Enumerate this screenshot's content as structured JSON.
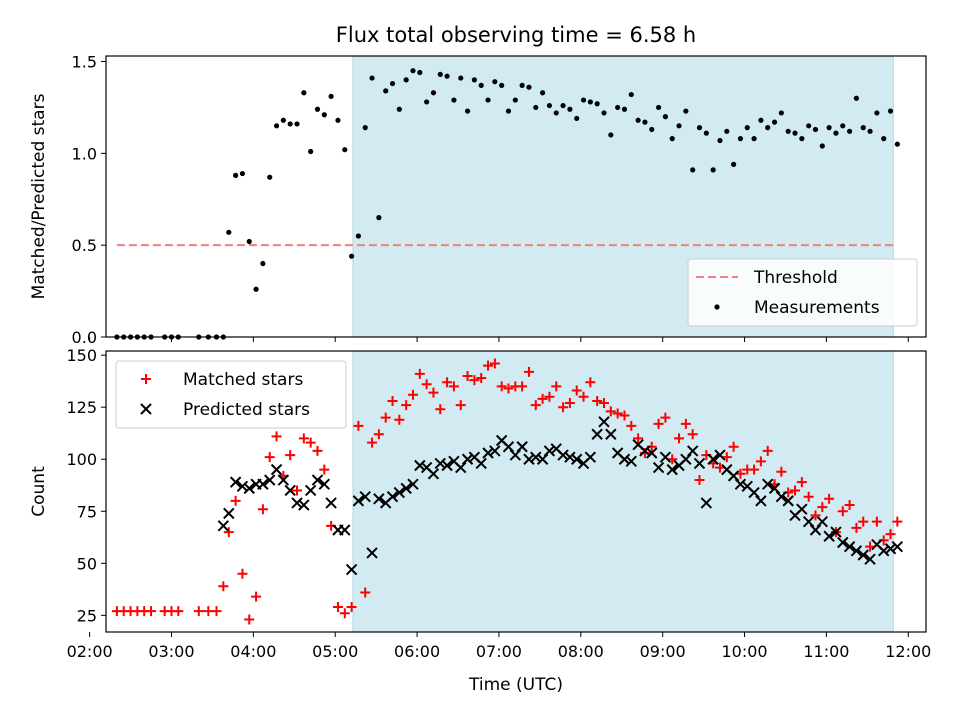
{
  "figure": {
    "title": "Flux total observing time = 6.58 h"
  },
  "colors": {
    "shade": "#add8e6",
    "threshold": "#f08080",
    "measurements": "#000000",
    "matched": "#ff0000",
    "predicted": "#000000"
  },
  "chart_data": [
    {
      "type": "scatter",
      "xlabel": "",
      "ylabel": "Matched/Predicted stars",
      "xlim": [
        "02:12",
        "12:13"
      ],
      "ylim": [
        0,
        1.53
      ],
      "yticks": [
        0.0,
        0.5,
        1.0,
        1.5
      ],
      "ytick_labels": [
        "0.0",
        "0.5",
        "1.0",
        "1.5"
      ],
      "shaded_span": [
        "05:13",
        "11:49"
      ],
      "threshold": {
        "label": "Threshold",
        "value": 0.5,
        "x": [
          "02:20",
          "11:50"
        ],
        "style": "dashed"
      },
      "legend_position": "lower right",
      "series": [
        {
          "name": "Measurements",
          "x": [
            "02:20",
            "02:25",
            "02:30",
            "02:35",
            "02:40",
            "02:45",
            "02:55",
            "03:00",
            "03:05",
            "03:20",
            "03:27",
            "03:33",
            "03:38",
            "03:42",
            "03:47",
            "03:52",
            "03:57",
            "04:02",
            "04:07",
            "04:12",
            "04:17",
            "04:22",
            "04:27",
            "04:32",
            "04:37",
            "04:42",
            "04:47",
            "04:52",
            "04:57",
            "05:02",
            "05:07",
            "05:12",
            "05:17",
            "05:22",
            "05:27",
            "05:32",
            "05:37",
            "05:42",
            "05:47",
            "05:52",
            "05:57",
            "06:02",
            "06:07",
            "06:12",
            "06:17",
            "06:22",
            "06:27",
            "06:32",
            "06:37",
            "06:42",
            "06:47",
            "06:52",
            "06:57",
            "07:02",
            "07:07",
            "07:12",
            "07:17",
            "07:22",
            "07:27",
            "07:32",
            "07:37",
            "07:42",
            "07:47",
            "07:52",
            "07:57",
            "08:02",
            "08:07",
            "08:12",
            "08:17",
            "08:22",
            "08:27",
            "08:32",
            "08:37",
            "08:42",
            "08:47",
            "08:52",
            "08:57",
            "09:02",
            "09:07",
            "09:12",
            "09:17",
            "09:22",
            "09:27",
            "09:32",
            "09:37",
            "09:42",
            "09:47",
            "09:52",
            "09:57",
            "10:02",
            "10:07",
            "10:12",
            "10:17",
            "10:22",
            "10:27",
            "10:32",
            "10:37",
            "10:42",
            "10:47",
            "10:52",
            "10:57",
            "11:02",
            "11:07",
            "11:12",
            "11:17",
            "11:22",
            "11:27",
            "11:32",
            "11:37",
            "11:42",
            "11:47",
            "11:52"
          ],
          "y": [
            0.0,
            0.0,
            0.0,
            0.0,
            0.0,
            0.0,
            0.0,
            0.0,
            0.0,
            0.0,
            0.0,
            0.0,
            0.0,
            0.57,
            0.88,
            0.89,
            0.52,
            0.26,
            0.4,
            0.87,
            1.15,
            1.18,
            1.16,
            1.16,
            1.33,
            1.01,
            1.24,
            1.21,
            1.31,
            1.18,
            1.02,
            0.44,
            0.55,
            1.14,
            1.41,
            0.65,
            1.34,
            1.38,
            1.24,
            1.4,
            1.45,
            1.44,
            1.28,
            1.33,
            1.43,
            1.42,
            1.29,
            1.41,
            1.23,
            1.4,
            1.37,
            1.29,
            1.39,
            1.37,
            1.23,
            1.29,
            1.37,
            1.36,
            1.25,
            1.33,
            1.26,
            1.22,
            1.26,
            1.24,
            1.19,
            1.29,
            1.28,
            1.27,
            1.22,
            1.1,
            1.25,
            1.24,
            1.32,
            1.18,
            1.17,
            1.13,
            1.25,
            1.2,
            1.08,
            1.15,
            1.23,
            0.91,
            1.14,
            1.11,
            0.91,
            1.07,
            1.12,
            0.94,
            1.08,
            1.14,
            1.08,
            1.18,
            1.14,
            1.17,
            1.22,
            1.12,
            1.11,
            1.08,
            1.15,
            1.13,
            1.04,
            1.14,
            1.11,
            1.15,
            1.12,
            1.3,
            1.14,
            1.12,
            1.22,
            1.08,
            1.23,
            1.05
          ]
        }
      ]
    },
    {
      "type": "scatter",
      "xlabel": "Time (UTC)",
      "ylabel": "Count",
      "xlim": [
        "02:12",
        "12:13"
      ],
      "ylim": [
        17,
        152
      ],
      "yticks": [
        25,
        50,
        75,
        100,
        125,
        150
      ],
      "ytick_labels": [
        "25",
        "50",
        "75",
        "100",
        "125",
        "150"
      ],
      "xtick_labels": [
        "02:00",
        "03:00",
        "04:00",
        "05:00",
        "06:00",
        "07:00",
        "08:00",
        "09:00",
        "10:00",
        "11:00",
        "12:00"
      ],
      "shaded_span": [
        "05:13",
        "11:49"
      ],
      "legend_position": "upper left",
      "series": [
        {
          "name": "Matched stars",
          "marker": "plus",
          "x": [
            "02:20",
            "02:25",
            "02:30",
            "02:35",
            "02:40",
            "02:45",
            "02:55",
            "03:00",
            "03:05",
            "03:20",
            "03:27",
            "03:33",
            "03:38",
            "03:42",
            "03:47",
            "03:52",
            "03:57",
            "04:02",
            "04:07",
            "04:12",
            "04:17",
            "04:22",
            "04:27",
            "04:32",
            "04:37",
            "04:42",
            "04:47",
            "04:52",
            "04:57",
            "05:02",
            "05:07",
            "05:12",
            "05:17",
            "05:22",
            "05:27",
            "05:32",
            "05:37",
            "05:42",
            "05:47",
            "05:52",
            "05:57",
            "06:02",
            "06:07",
            "06:12",
            "06:17",
            "06:22",
            "06:27",
            "06:32",
            "06:37",
            "06:42",
            "06:47",
            "06:52",
            "06:57",
            "07:02",
            "07:07",
            "07:12",
            "07:17",
            "07:22",
            "07:27",
            "07:32",
            "07:37",
            "07:42",
            "07:47",
            "07:52",
            "07:57",
            "08:02",
            "08:07",
            "08:12",
            "08:17",
            "08:22",
            "08:27",
            "08:32",
            "08:37",
            "08:42",
            "08:47",
            "08:52",
            "08:57",
            "09:02",
            "09:07",
            "09:12",
            "09:17",
            "09:22",
            "09:27",
            "09:32",
            "09:37",
            "09:42",
            "09:47",
            "09:52",
            "09:57",
            "10:02",
            "10:07",
            "10:12",
            "10:17",
            "10:22",
            "10:27",
            "10:32",
            "10:37",
            "10:42",
            "10:47",
            "10:52",
            "10:57",
            "11:02",
            "11:07",
            "11:12",
            "11:17",
            "11:22",
            "11:27",
            "11:32",
            "11:37",
            "11:42",
            "11:47",
            "11:52"
          ],
          "y": [
            27,
            27,
            27,
            27,
            27,
            27,
            27,
            27,
            27,
            27,
            27,
            27,
            39,
            65,
            80,
            45,
            23,
            34,
            76,
            101,
            111,
            92,
            102,
            85,
            110,
            108,
            104,
            95,
            68,
            29,
            26,
            29,
            116,
            36,
            108,
            112,
            120,
            128,
            119,
            126,
            131,
            141,
            136,
            132,
            124,
            137,
            135,
            126,
            140,
            138,
            139,
            145,
            146,
            135,
            134,
            135,
            135,
            142,
            126,
            129,
            130,
            135,
            125,
            127,
            133,
            130,
            137,
            128,
            127,
            123,
            122,
            121,
            116,
            110,
            103,
            106,
            117,
            120,
            100,
            110,
            117,
            112,
            90,
            102,
            98,
            96,
            101,
            106,
            93,
            95,
            95,
            99,
            104,
            88,
            94,
            84,
            85,
            89,
            82,
            73,
            77,
            81,
            65,
            75,
            78,
            67,
            70,
            58,
            70,
            61,
            64,
            70
          ]
        },
        {
          "name": "Predicted stars",
          "marker": "x",
          "x": [
            "03:38",
            "03:42",
            "03:47",
            "03:52",
            "03:57",
            "04:02",
            "04:07",
            "04:12",
            "04:17",
            "04:22",
            "04:27",
            "04:32",
            "04:37",
            "04:42",
            "04:47",
            "04:52",
            "04:57",
            "05:02",
            "05:07",
            "05:12",
            "05:17",
            "05:22",
            "05:27",
            "05:32",
            "05:37",
            "05:42",
            "05:47",
            "05:52",
            "05:57",
            "06:02",
            "06:07",
            "06:12",
            "06:17",
            "06:22",
            "06:27",
            "06:32",
            "06:37",
            "06:42",
            "06:47",
            "06:52",
            "06:57",
            "07:02",
            "07:07",
            "07:12",
            "07:17",
            "07:22",
            "07:27",
            "07:32",
            "07:37",
            "07:42",
            "07:47",
            "07:52",
            "07:57",
            "08:02",
            "08:07",
            "08:12",
            "08:17",
            "08:22",
            "08:27",
            "08:32",
            "08:37",
            "08:42",
            "08:47",
            "08:52",
            "08:57",
            "09:02",
            "09:07",
            "09:12",
            "09:17",
            "09:22",
            "09:27",
            "09:32",
            "09:37",
            "09:42",
            "09:47",
            "09:52",
            "09:57",
            "10:02",
            "10:07",
            "10:12",
            "10:17",
            "10:22",
            "10:27",
            "10:32",
            "10:37",
            "10:42",
            "10:47",
            "10:52",
            "10:57",
            "11:02",
            "11:07",
            "11:12",
            "11:17",
            "11:22",
            "11:27",
            "11:32",
            "11:37",
            "11:42",
            "11:47",
            "11:52"
          ],
          "y": [
            68,
            74,
            89,
            87,
            86,
            88,
            88,
            90,
            95,
            90,
            85,
            79,
            78,
            85,
            90,
            88,
            79,
            66,
            66,
            47,
            80,
            82,
            55,
            81,
            79,
            82,
            84,
            86,
            88,
            97,
            96,
            93,
            98,
            97,
            99,
            96,
            100,
            101,
            98,
            103,
            104,
            109,
            106,
            102,
            106,
            100,
            101,
            100,
            104,
            105,
            102,
            101,
            100,
            98,
            101,
            112,
            118,
            112,
            103,
            100,
            99,
            107,
            104,
            103,
            96,
            101,
            95,
            97,
            100,
            104,
            98,
            79,
            100,
            102,
            95,
            92,
            88,
            87,
            84,
            80,
            88,
            86,
            82,
            80,
            73,
            76,
            70,
            66,
            70,
            63,
            65,
            60,
            58,
            56,
            54,
            52,
            59,
            56,
            57,
            58
          ]
        }
      ]
    }
  ]
}
